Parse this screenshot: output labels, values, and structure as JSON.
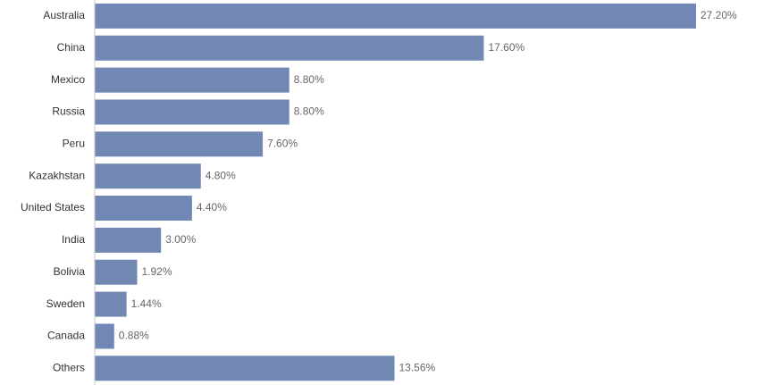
{
  "chart_data": {
    "type": "bar",
    "orientation": "horizontal",
    "categories": [
      "Australia",
      "China",
      "Mexico",
      "Russia",
      "Peru",
      "Kazakhstan",
      "United States",
      "India",
      "Bolivia",
      "Sweden",
      "Canada",
      "Others"
    ],
    "values": [
      27.2,
      17.6,
      8.8,
      8.8,
      7.6,
      4.8,
      4.4,
      3.0,
      1.92,
      1.44,
      0.88,
      13.56
    ],
    "value_labels": [
      "27.20%",
      "17.60%",
      "8.80%",
      "8.80%",
      "7.60%",
      "4.80%",
      "4.40%",
      "3.00%",
      "1.92%",
      "1.44%",
      "0.88%",
      "13.56%"
    ],
    "unit": "%",
    "xlim": [
      0,
      27.2
    ],
    "grid": false,
    "legend": "none",
    "bar_color": "#7088b3",
    "title": "",
    "xlabel": "",
    "ylabel": ""
  }
}
